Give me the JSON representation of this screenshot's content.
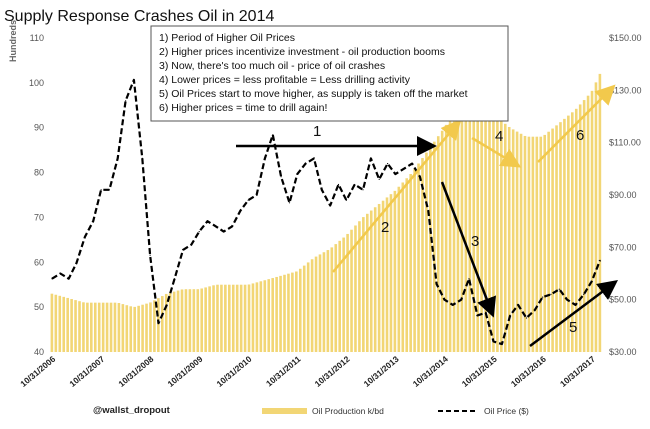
{
  "chart_data": {
    "type": "bar+line",
    "title": "Supply Response Crashes Oil in 2014",
    "ylabel_left": "Hundreds",
    "ylim_left": [
      40,
      110
    ],
    "yticks_left": [
      "40",
      "50",
      "60",
      "70",
      "80",
      "90",
      "100",
      "110"
    ],
    "ylim_right": [
      30,
      150
    ],
    "yticks_right": [
      "$30.00",
      "$50.00",
      "$70.00",
      "$90.00",
      "$110.00",
      "$130.00",
      "$150.00"
    ],
    "x_tick_labels": [
      "10/31/2006",
      "10/31/2007",
      "10/31/2008",
      "10/31/2009",
      "10/31/2010",
      "10/31/2011",
      "10/31/2012",
      "10/31/2013",
      "10/31/2014",
      "10/31/2015",
      "10/31/2016",
      "10/31/2017"
    ],
    "series": [
      {
        "name": "Oil Production k/bd",
        "axis": "left",
        "style": "bar",
        "color": "#f2d675",
        "x": [
          2006.83,
          2007.17,
          2007.5,
          2007.83,
          2008.17,
          2008.5,
          2008.83,
          2009.17,
          2009.5,
          2009.83,
          2010.17,
          2010.5,
          2010.83,
          2011.17,
          2011.5,
          2011.83,
          2012.17,
          2012.5,
          2012.83,
          2013.17,
          2013.5,
          2013.83,
          2014.17,
          2014.5,
          2014.83,
          2015.17,
          2015.5,
          2015.83,
          2016.17,
          2016.5,
          2016.83,
          2017.17,
          2017.5,
          2017.83,
          2018.0
        ],
        "values": [
          53,
          52,
          51,
          51,
          51,
          50,
          51,
          53,
          54,
          54,
          55,
          55,
          55,
          56,
          57,
          58,
          61,
          63,
          66,
          70,
          73,
          76,
          80,
          85,
          90,
          96,
          95,
          93,
          90,
          88,
          88,
          91,
          94,
          98,
          102
        ]
      },
      {
        "name": "Oil Price ($)",
        "axis": "right",
        "style": "dashed-line",
        "color": "#000000",
        "x": [
          2006.83,
          2007.0,
          2007.17,
          2007.33,
          2007.5,
          2007.67,
          2007.83,
          2008.0,
          2008.17,
          2008.33,
          2008.5,
          2008.67,
          2008.83,
          2009.0,
          2009.17,
          2009.33,
          2009.5,
          2009.67,
          2009.83,
          2010.0,
          2010.17,
          2010.33,
          2010.5,
          2010.67,
          2010.83,
          2011.0,
          2011.17,
          2011.33,
          2011.5,
          2011.67,
          2011.83,
          2012.0,
          2012.17,
          2012.33,
          2012.5,
          2012.67,
          2012.83,
          2013.0,
          2013.17,
          2013.33,
          2013.5,
          2013.67,
          2013.83,
          2014.0,
          2014.17,
          2014.33,
          2014.5,
          2014.67,
          2014.83,
          2015.0,
          2015.17,
          2015.33,
          2015.5,
          2015.67,
          2015.83,
          2016.0,
          2016.17,
          2016.33,
          2016.5,
          2016.67,
          2016.83,
          2017.0,
          2017.17,
          2017.33,
          2017.5,
          2017.67,
          2017.83,
          2018.0
        ],
        "values": [
          58,
          60,
          58,
          64,
          74,
          80,
          92,
          92,
          104,
          126,
          134,
          104,
          67,
          41,
          48,
          58,
          69,
          71,
          76,
          80,
          78,
          76,
          78,
          84,
          88,
          90,
          104,
          113,
          97,
          87,
          98,
          102,
          104,
          92,
          86,
          94,
          88,
          94,
          92,
          104,
          96,
          102,
          98,
          100,
          102,
          97,
          84,
          56,
          50,
          48,
          50,
          58,
          44,
          45,
          34,
          33,
          44,
          48,
          43,
          46,
          51,
          52,
          54,
          50,
          48,
          52,
          57,
          65
        ]
      }
    ],
    "annotations": [
      "1) Period of Higher Oil Prices",
      "2) Higher prices incentivize investment - oil production booms",
      "3) Now, there's too much oil - price of oil crashes",
      "4) Lower prices = less profitable = Less drilling activity",
      "5) Oil Prices start to move higher, as supply is taken off the market",
      "6) Higher prices = time to drill again!"
    ],
    "arrows": [
      {
        "label": "1",
        "color": "#000000"
      },
      {
        "label": "2",
        "color": "#f2c94c"
      },
      {
        "label": "3",
        "color": "#000000"
      },
      {
        "label": "4",
        "color": "#f2c94c"
      },
      {
        "label": "5",
        "color": "#000000"
      },
      {
        "label": "6",
        "color": "#f2c94c"
      }
    ],
    "credit": "@wallst_dropout",
    "legend_position": "bottom"
  }
}
